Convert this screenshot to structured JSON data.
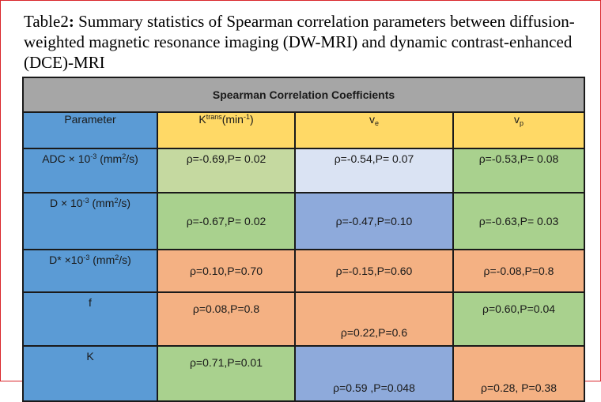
{
  "caption": {
    "label": "Table2",
    "colon": ":",
    "text": " Summary statistics of Spearman correlation parameters between diffusion-weighted magnetic resonance imaging (DW-MRI) and dynamic contrast-enhanced (DCE)-MRI"
  },
  "table": {
    "banner": "Spearman Correlation Coefficients",
    "headers": {
      "parameter": "Parameter",
      "ktrans_base": "K",
      "ktrans_sup": "trans",
      "ktrans_unit": "(min",
      "ktrans_unit_sup": "-1",
      "ktrans_close": ")",
      "ve_base": "v",
      "ve_sub": "e",
      "vp_base": "v",
      "vp_sub": "p"
    },
    "rows": [
      {
        "label_pre": "ADC × 10",
        "label_sup": "-3",
        "label_mid": " (mm",
        "label_sup2": "2",
        "label_post": "/s)",
        "ktrans": "ρ=-0.69,P= 0.02",
        "ve": "ρ=-0.54,P= 0.07",
        "vp": "ρ=-0.53,P= 0.08"
      },
      {
        "label_pre": "D × 10",
        "label_sup": "-3",
        "label_mid": " (mm",
        "label_sup2": "2",
        "label_post": "/s)",
        "ktrans": "ρ=-0.67,P= 0.02",
        "ve": "ρ=-0.47,P=0.10",
        "vp": "ρ=-0.63,P= 0.03"
      },
      {
        "label_pre": "D* ×10",
        "label_sup": "-3",
        "label_mid": " (mm",
        "label_sup2": "2",
        "label_post": "/s)",
        "ktrans": "ρ=0.10,P=0.70",
        "ve": "ρ=-0.15,P=0.60",
        "vp": "ρ=-0.08,P=0.8"
      },
      {
        "label": "f",
        "ktrans": "ρ=0.08,P=0.8",
        "ve": "ρ=0.22,P=0.6",
        "vp": "ρ=0.60,P=0.04"
      },
      {
        "label": "K",
        "ktrans": "ρ=0.71,P=0.01",
        "ve": "ρ=0.59 ,P=0.048",
        "vp": "ρ=0.28, P=0.38"
      }
    ]
  },
  "colors": {
    "frame": "#d9262c",
    "banner": "#a6a6a6",
    "param_blue": "#5b9bd5",
    "header_yellow": "#ffd966",
    "light_green": "#c5d9a0",
    "green": "#a9d18e",
    "light_blue": "#dae3f3",
    "medium_blue": "#8eaadb",
    "orange": "#f4b183"
  }
}
